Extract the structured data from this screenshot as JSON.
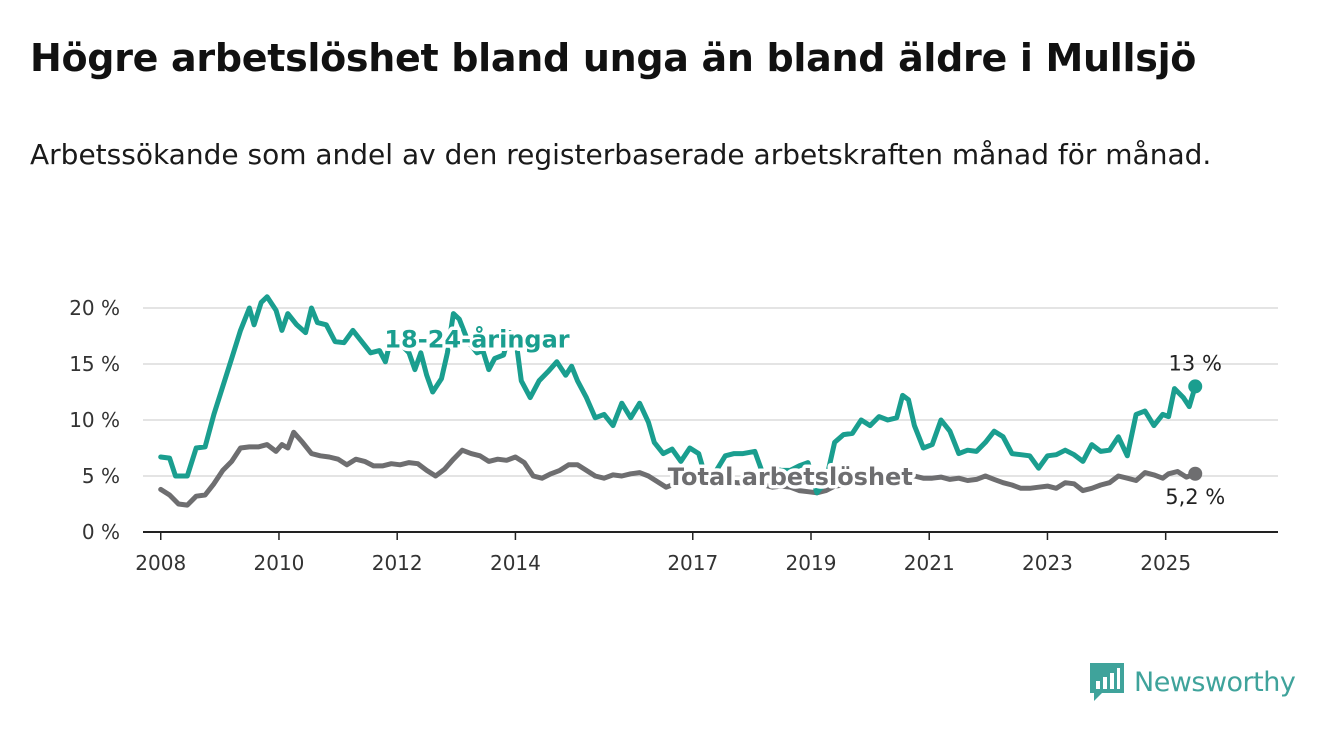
{
  "title": "Högre arbetslöshet bland unga än bland äldre i Mullsjö",
  "subtitle": "Arbetssökande som andel av den registerbaserade arbetskraften månad för månad.",
  "brand": {
    "name": "Newsworthy",
    "icon": "newsworthy-logo-icon",
    "color": "#3fa39b"
  },
  "chart_data": {
    "type": "line",
    "ylim": [
      0,
      20
    ],
    "xlim": [
      2007.7,
      2026.9
    ],
    "grid": true,
    "y_ticks": [
      {
        "value": 0,
        "label": "0 %"
      },
      {
        "value": 5,
        "label": "5 %"
      },
      {
        "value": 10,
        "label": "10 %"
      },
      {
        "value": 15,
        "label": "15 %"
      },
      {
        "value": 20,
        "label": "20 %"
      }
    ],
    "x_ticks": [
      {
        "value": 2008,
        "label": "2008"
      },
      {
        "value": 2010,
        "label": "2010"
      },
      {
        "value": 2012,
        "label": "2012"
      },
      {
        "value": 2014,
        "label": "2014"
      },
      {
        "value": 2017,
        "label": "2017"
      },
      {
        "value": 2019,
        "label": "2019"
      },
      {
        "value": 2021,
        "label": "2021"
      },
      {
        "value": 2023,
        "label": "2023"
      },
      {
        "value": 2025,
        "label": "2025"
      }
    ],
    "series": [
      {
        "name": "18-24-åringar",
        "color": "#1a9e8f",
        "end_label": "13 %",
        "points": [
          [
            2008.0,
            6.7
          ],
          [
            2008.15,
            6.6
          ],
          [
            2008.25,
            5.0
          ],
          [
            2008.45,
            5.0
          ],
          [
            2008.6,
            7.5
          ],
          [
            2008.75,
            7.6
          ],
          [
            2008.9,
            10.5
          ],
          [
            2009.05,
            13.0
          ],
          [
            2009.2,
            15.5
          ],
          [
            2009.35,
            18.0
          ],
          [
            2009.5,
            20.0
          ],
          [
            2009.58,
            18.5
          ],
          [
            2009.7,
            20.5
          ],
          [
            2009.8,
            21.0
          ],
          [
            2009.95,
            19.8
          ],
          [
            2010.05,
            18.0
          ],
          [
            2010.15,
            19.5
          ],
          [
            2010.3,
            18.5
          ],
          [
            2010.45,
            17.8
          ],
          [
            2010.55,
            20.0
          ],
          [
            2010.65,
            18.7
          ],
          [
            2010.8,
            18.5
          ],
          [
            2010.95,
            17.0
          ],
          [
            2011.1,
            16.9
          ],
          [
            2011.25,
            18.0
          ],
          [
            2011.4,
            17.0
          ],
          [
            2011.55,
            16.0
          ],
          [
            2011.7,
            16.2
          ],
          [
            2011.8,
            15.2
          ],
          [
            2011.9,
            17.4
          ],
          [
            2012.05,
            16.8
          ],
          [
            2012.2,
            16.0
          ],
          [
            2012.3,
            14.5
          ],
          [
            2012.4,
            16.0
          ],
          [
            2012.5,
            14.0
          ],
          [
            2012.6,
            12.5
          ],
          [
            2012.75,
            13.7
          ],
          [
            2012.85,
            16.0
          ],
          [
            2012.95,
            19.5
          ],
          [
            2013.05,
            19.0
          ],
          [
            2013.2,
            17.0
          ],
          [
            2013.35,
            16.0
          ],
          [
            2013.45,
            16.2
          ],
          [
            2013.55,
            14.5
          ],
          [
            2013.65,
            15.5
          ],
          [
            2013.8,
            15.8
          ],
          [
            2013.9,
            17.8
          ],
          [
            2014.0,
            17.5
          ],
          [
            2014.1,
            13.5
          ],
          [
            2014.25,
            12.0
          ],
          [
            2014.4,
            13.5
          ],
          [
            2014.55,
            14.3
          ],
          [
            2014.7,
            15.2
          ],
          [
            2014.85,
            14.0
          ],
          [
            2014.95,
            14.8
          ],
          [
            2015.05,
            13.5
          ],
          [
            2015.2,
            12.0
          ],
          [
            2015.35,
            10.2
          ],
          [
            2015.5,
            10.5
          ],
          [
            2015.65,
            9.5
          ],
          [
            2015.8,
            11.5
          ],
          [
            2015.95,
            10.2
          ],
          [
            2016.1,
            11.5
          ],
          [
            2016.25,
            9.8
          ],
          [
            2016.35,
            8.0
          ],
          [
            2016.5,
            7.0
          ],
          [
            2016.65,
            7.4
          ],
          [
            2016.8,
            6.3
          ],
          [
            2016.95,
            7.5
          ],
          [
            2017.1,
            7.0
          ],
          [
            2017.25,
            4.3
          ],
          [
            2017.4,
            5.5
          ],
          [
            2017.55,
            6.8
          ],
          [
            2017.7,
            7.0
          ],
          [
            2017.85,
            7.0
          ],
          [
            2018.05,
            7.2
          ],
          [
            2018.2,
            5.0
          ],
          [
            2018.35,
            5.7
          ],
          [
            2018.5,
            5.5
          ],
          [
            2018.65,
            5.5
          ],
          [
            2018.8,
            5.9
          ],
          [
            2018.95,
            6.2
          ],
          [
            2019.1,
            3.5
          ],
          [
            2019.25,
            4.5
          ],
          [
            2019.4,
            8.0
          ],
          [
            2019.55,
            8.7
          ],
          [
            2019.7,
            8.8
          ],
          [
            2019.85,
            10.0
          ],
          [
            2020.0,
            9.5
          ],
          [
            2020.15,
            10.3
          ],
          [
            2020.3,
            10.0
          ],
          [
            2020.45,
            10.2
          ],
          [
            2020.55,
            12.2
          ],
          [
            2020.65,
            11.8
          ],
          [
            2020.75,
            9.5
          ],
          [
            2020.9,
            7.5
          ],
          [
            2021.05,
            7.8
          ],
          [
            2021.2,
            10.0
          ],
          [
            2021.35,
            9.0
          ],
          [
            2021.5,
            7.0
          ],
          [
            2021.65,
            7.3
          ],
          [
            2021.8,
            7.2
          ],
          [
            2021.95,
            8.0
          ],
          [
            2022.1,
            9.0
          ],
          [
            2022.25,
            8.5
          ],
          [
            2022.4,
            7.0
          ],
          [
            2022.55,
            6.9
          ],
          [
            2022.7,
            6.8
          ],
          [
            2022.85,
            5.7
          ],
          [
            2023.0,
            6.8
          ],
          [
            2023.15,
            6.9
          ],
          [
            2023.3,
            7.3
          ],
          [
            2023.45,
            6.9
          ],
          [
            2023.6,
            6.3
          ],
          [
            2023.75,
            7.8
          ],
          [
            2023.9,
            7.2
          ],
          [
            2024.05,
            7.3
          ],
          [
            2024.2,
            8.5
          ],
          [
            2024.35,
            6.8
          ],
          [
            2024.5,
            10.5
          ],
          [
            2024.65,
            10.8
          ],
          [
            2024.8,
            9.5
          ],
          [
            2024.95,
            10.5
          ],
          [
            2025.05,
            10.3
          ],
          [
            2025.15,
            12.8
          ],
          [
            2025.3,
            12.0
          ],
          [
            2025.4,
            11.2
          ],
          [
            2025.5,
            13.0
          ]
        ]
      },
      {
        "name": "Total arbetslöshet",
        "color": "#6e6e70",
        "end_label": "5,2 %",
        "points": [
          [
            2008.0,
            3.8
          ],
          [
            2008.15,
            3.3
          ],
          [
            2008.3,
            2.5
          ],
          [
            2008.45,
            2.4
          ],
          [
            2008.6,
            3.2
          ],
          [
            2008.75,
            3.3
          ],
          [
            2008.9,
            4.3
          ],
          [
            2009.05,
            5.5
          ],
          [
            2009.2,
            6.3
          ],
          [
            2009.35,
            7.5
          ],
          [
            2009.5,
            7.6
          ],
          [
            2009.65,
            7.6
          ],
          [
            2009.8,
            7.8
          ],
          [
            2009.95,
            7.2
          ],
          [
            2010.05,
            7.8
          ],
          [
            2010.15,
            7.5
          ],
          [
            2010.25,
            8.9
          ],
          [
            2010.4,
            8.0
          ],
          [
            2010.55,
            7.0
          ],
          [
            2010.7,
            6.8
          ],
          [
            2010.85,
            6.7
          ],
          [
            2011.0,
            6.5
          ],
          [
            2011.15,
            6.0
          ],
          [
            2011.3,
            6.5
          ],
          [
            2011.45,
            6.3
          ],
          [
            2011.6,
            5.9
          ],
          [
            2011.75,
            5.9
          ],
          [
            2011.9,
            6.1
          ],
          [
            2012.05,
            6.0
          ],
          [
            2012.2,
            6.2
          ],
          [
            2012.35,
            6.1
          ],
          [
            2012.5,
            5.5
          ],
          [
            2012.65,
            5.0
          ],
          [
            2012.8,
            5.6
          ],
          [
            2012.95,
            6.5
          ],
          [
            2013.1,
            7.3
          ],
          [
            2013.25,
            7.0
          ],
          [
            2013.4,
            6.8
          ],
          [
            2013.55,
            6.3
          ],
          [
            2013.7,
            6.5
          ],
          [
            2013.85,
            6.4
          ],
          [
            2014.0,
            6.7
          ],
          [
            2014.15,
            6.2
          ],
          [
            2014.3,
            5.0
          ],
          [
            2014.45,
            4.8
          ],
          [
            2014.6,
            5.2
          ],
          [
            2014.75,
            5.5
          ],
          [
            2014.9,
            6.0
          ],
          [
            2015.05,
            6.0
          ],
          [
            2015.2,
            5.5
          ],
          [
            2015.35,
            5.0
          ],
          [
            2015.5,
            4.8
          ],
          [
            2015.65,
            5.1
          ],
          [
            2015.8,
            5.0
          ],
          [
            2015.95,
            5.2
          ],
          [
            2016.1,
            5.3
          ],
          [
            2016.25,
            5.0
          ],
          [
            2016.4,
            4.5
          ],
          [
            2016.55,
            4.0
          ],
          [
            2016.7,
            4.3
          ],
          [
            2016.85,
            4.5
          ],
          [
            2017.0,
            4.4
          ],
          [
            2017.15,
            4.5
          ],
          [
            2017.3,
            4.2
          ],
          [
            2017.45,
            4.6
          ],
          [
            2017.6,
            4.5
          ],
          [
            2017.75,
            4.4
          ],
          [
            2017.9,
            4.4
          ],
          [
            2018.05,
            4.3
          ],
          [
            2018.2,
            4.2
          ],
          [
            2018.35,
            4.0
          ],
          [
            2018.5,
            4.1
          ],
          [
            2018.65,
            4.0
          ],
          [
            2018.8,
            3.7
          ],
          [
            2018.95,
            3.6
          ],
          [
            2019.1,
            3.5
          ],
          [
            2019.25,
            3.7
          ],
          [
            2019.4,
            4.1
          ],
          [
            2019.55,
            4.2
          ],
          [
            2019.7,
            4.4
          ],
          [
            2019.85,
            4.6
          ],
          [
            2020.0,
            4.8
          ],
          [
            2020.15,
            5.0
          ],
          [
            2020.3,
            5.2
          ],
          [
            2020.45,
            5.0
          ],
          [
            2020.6,
            5.2
          ],
          [
            2020.75,
            5.0
          ],
          [
            2020.9,
            4.8
          ],
          [
            2021.05,
            4.8
          ],
          [
            2021.2,
            4.9
          ],
          [
            2021.35,
            4.7
          ],
          [
            2021.5,
            4.8
          ],
          [
            2021.65,
            4.6
          ],
          [
            2021.8,
            4.7
          ],
          [
            2021.95,
            5.0
          ],
          [
            2022.1,
            4.7
          ],
          [
            2022.25,
            4.4
          ],
          [
            2022.4,
            4.2
          ],
          [
            2022.55,
            3.9
          ],
          [
            2022.7,
            3.9
          ],
          [
            2022.85,
            4.0
          ],
          [
            2023.0,
            4.1
          ],
          [
            2023.15,
            3.9
          ],
          [
            2023.3,
            4.4
          ],
          [
            2023.45,
            4.3
          ],
          [
            2023.6,
            3.7
          ],
          [
            2023.75,
            3.9
          ],
          [
            2023.9,
            4.2
          ],
          [
            2024.05,
            4.4
          ],
          [
            2024.2,
            5.0
          ],
          [
            2024.35,
            4.8
          ],
          [
            2024.5,
            4.6
          ],
          [
            2024.65,
            5.3
          ],
          [
            2024.8,
            5.1
          ],
          [
            2024.95,
            4.8
          ],
          [
            2025.05,
            5.2
          ],
          [
            2025.2,
            5.4
          ],
          [
            2025.35,
            4.9
          ],
          [
            2025.5,
            5.2
          ]
        ]
      }
    ],
    "annotations": [
      {
        "text": "18-24-åringar",
        "series": 0,
        "x": 2013.35,
        "y": 17.2
      },
      {
        "text": "Total arbetslöshet",
        "series": 1,
        "x": 2018.65,
        "y": 4.9
      }
    ]
  }
}
